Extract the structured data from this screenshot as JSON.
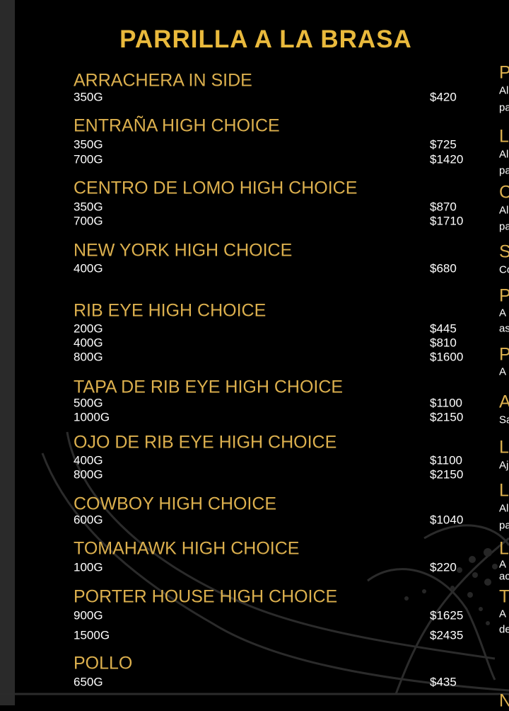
{
  "title": "PARRILLA A LA BRASA",
  "colors": {
    "gold": "#dcb04e",
    "title_gold": "#e9b93c",
    "background": "#000000",
    "text": "#ffffff"
  },
  "items": [
    {
      "name": "ARRACHERA IN SIDE",
      "sizes": [
        {
          "weight": "350G",
          "price": "$420"
        }
      ]
    },
    {
      "name": "ENTRAÑA HIGH CHOICE",
      "sizes": [
        {
          "weight": "350G",
          "price": "$725"
        },
        {
          "weight": "700G",
          "price": "$1420"
        }
      ]
    },
    {
      "name": "CENTRO DE LOMO HIGH CHOICE",
      "sizes": [
        {
          "weight": "350G",
          "price": "$870"
        },
        {
          "weight": "700G",
          "price": "$1710"
        }
      ]
    },
    {
      "name": "NEW YORK HIGH CHOICE",
      "sizes": [
        {
          "weight": "400G",
          "price": "$680"
        }
      ]
    },
    {
      "name": "RIB EYE HIGH CHOICE",
      "sizes": [
        {
          "weight": "200G",
          "price": "$445"
        },
        {
          "weight": "400G",
          "price": "$810"
        },
        {
          "weight": "800G",
          "price": "$1600"
        }
      ]
    },
    {
      "name": "TAPA DE RIB EYE HIGH CHOICE",
      "sizes": [
        {
          "weight": "500G",
          "price": "$1100"
        },
        {
          "weight": "1000G",
          "price": "$2150"
        }
      ]
    },
    {
      "name": "OJO DE RIB EYE HIGH CHOICE",
      "sizes": [
        {
          "weight": "400G",
          "price": "$1100"
        },
        {
          "weight": "800G",
          "price": "$2150"
        }
      ]
    },
    {
      "name": "COWBOY HIGH CHOICE",
      "sizes": [
        {
          "weight": "600G",
          "price": "$1040"
        }
      ]
    },
    {
      "name": "TOMAHAWK HIGH CHOICE",
      "sizes": [
        {
          "weight": "100G",
          "price": "$220"
        }
      ]
    },
    {
      "name": "PORTER HOUSE HIGH CHOICE",
      "sizes": [
        {
          "weight": "900G",
          "price": "$1625"
        },
        {
          "weight": "1500G",
          "price": "$2435"
        }
      ]
    },
    {
      "name": "POLLO",
      "sizes": [
        {
          "weight": "650G",
          "price": "$435"
        }
      ]
    }
  ],
  "right_column": [
    {
      "heading": "P",
      "lines": [
        "Al",
        "pa"
      ]
    },
    {
      "heading": "L",
      "lines": [
        "Al",
        "pa"
      ]
    },
    {
      "heading": "C",
      "lines": [
        "Al",
        "pa"
      ]
    },
    {
      "heading": "S",
      "lines": [
        "Co"
      ]
    },
    {
      "heading": "P",
      "lines": [
        "A",
        "as"
      ]
    },
    {
      "heading": "P",
      "lines": [
        "A"
      ]
    },
    {
      "heading": "A",
      "lines": [
        "Sa"
      ]
    },
    {
      "heading": "L",
      "lines": [
        "Aj"
      ]
    },
    {
      "heading": "L",
      "lines": [
        "Al",
        "pa"
      ]
    },
    {
      "heading": "L",
      "lines": [
        "A",
        "ac"
      ]
    },
    {
      "heading": "T",
      "lines": [
        "A",
        "de"
      ]
    },
    {
      "heading": "N",
      "lines": []
    }
  ]
}
